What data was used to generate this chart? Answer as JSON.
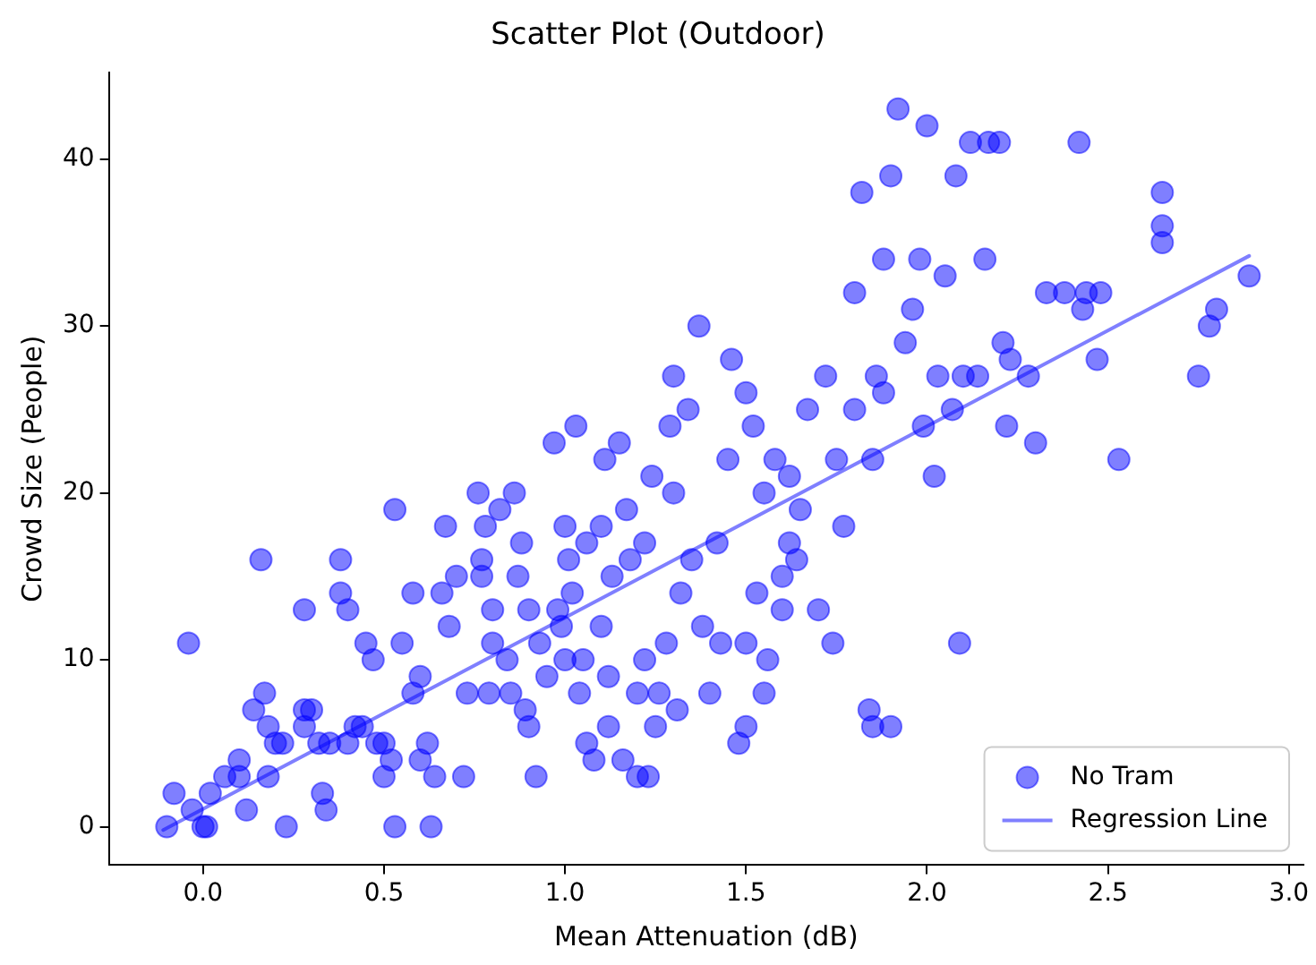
{
  "chart_data": {
    "type": "scatter",
    "title": "Scatter Plot (Outdoor)",
    "xlabel": "Mean Attenuation (dB)",
    "ylabel": "Crowd Size (People)",
    "xlim": [
      -0.26,
      3.04
    ],
    "ylim": [
      -2.3,
      45.2
    ],
    "xticks": [
      {
        "value": 0,
        "label": "0.0"
      },
      {
        "value": 0.5,
        "label": "0.5"
      },
      {
        "value": 1,
        "label": "1.0"
      },
      {
        "value": 1.5,
        "label": "1.5"
      },
      {
        "value": 2,
        "label": "2.0"
      },
      {
        "value": 2.5,
        "label": "2.5"
      },
      {
        "value": 3,
        "label": "3.0"
      }
    ],
    "yticks": [
      0,
      10,
      20,
      30,
      40
    ],
    "grid": false,
    "legend": "bottom right",
    "marker": "circle",
    "series": [
      {
        "name": "No Tram",
        "color": "#0000ff",
        "x": [
          -0.1,
          -0.08,
          -0.04,
          -0.03,
          0.0,
          0.01,
          0.02,
          0.06,
          0.1,
          0.1,
          0.12,
          0.14,
          0.16,
          0.17,
          0.18,
          0.18,
          0.2,
          0.22,
          0.23,
          0.28,
          0.28,
          0.28,
          0.3,
          0.32,
          0.33,
          0.34,
          0.35,
          0.38,
          0.38,
          0.4,
          0.4,
          0.42,
          0.44,
          0.45,
          0.47,
          0.48,
          0.5,
          0.5,
          0.52,
          0.53,
          0.53,
          0.55,
          0.58,
          0.58,
          0.6,
          0.6,
          0.62,
          0.63,
          0.64,
          0.66,
          0.67,
          0.68,
          0.7,
          0.72,
          0.73,
          0.76,
          0.77,
          0.77,
          0.78,
          0.79,
          0.8,
          0.8,
          0.82,
          0.84,
          0.85,
          0.86,
          0.87,
          0.88,
          0.89,
          0.9,
          0.9,
          0.92,
          0.93,
          0.95,
          0.97,
          0.98,
          0.99,
          1.0,
          1.0,
          1.01,
          1.02,
          1.03,
          1.04,
          1.05,
          1.06,
          1.06,
          1.08,
          1.1,
          1.1,
          1.11,
          1.12,
          1.12,
          1.13,
          1.15,
          1.16,
          1.17,
          1.18,
          1.2,
          1.2,
          1.22,
          1.22,
          1.23,
          1.24,
          1.25,
          1.26,
          1.28,
          1.29,
          1.3,
          1.3,
          1.31,
          1.32,
          1.34,
          1.35,
          1.37,
          1.38,
          1.4,
          1.42,
          1.43,
          1.45,
          1.46,
          1.48,
          1.5,
          1.5,
          1.52,
          1.53,
          1.55,
          1.56,
          1.58,
          1.6,
          1.62,
          1.64,
          1.65,
          1.67,
          1.7,
          1.72,
          1.74,
          1.75,
          1.77,
          1.8,
          1.8,
          1.82,
          1.84,
          1.85,
          1.86,
          1.88,
          1.88,
          1.9,
          1.9,
          1.92,
          1.94,
          1.96,
          1.98,
          1.99,
          2.0,
          2.02,
          2.03,
          2.05,
          2.07,
          2.08,
          2.09,
          2.1,
          2.12,
          2.14,
          2.16,
          2.17,
          2.2,
          2.21,
          2.22,
          2.23,
          2.28,
          2.3,
          2.33,
          2.38,
          2.42,
          2.43,
          2.44,
          2.47,
          2.48,
          2.53,
          2.65,
          2.65,
          2.65,
          2.75,
          2.78,
          2.8,
          2.89,
          1.5,
          1.55,
          1.6,
          1.85,
          1.62
        ],
        "values": [
          0,
          2,
          11,
          1,
          0,
          0,
          2,
          3,
          4,
          3,
          1,
          7,
          16,
          8,
          6,
          3,
          5,
          5,
          0,
          13,
          7,
          6,
          7,
          5,
          2,
          1,
          5,
          14,
          16,
          5,
          13,
          6,
          6,
          11,
          10,
          5,
          5,
          3,
          4,
          19,
          0,
          11,
          14,
          8,
          9,
          4,
          5,
          0,
          3,
          14,
          18,
          12,
          15,
          3,
          8,
          20,
          16,
          15,
          18,
          8,
          13,
          11,
          19,
          10,
          8,
          20,
          15,
          17,
          7,
          13,
          6,
          3,
          11,
          9,
          23,
          13,
          12,
          18,
          10,
          16,
          14,
          24,
          8,
          10,
          17,
          5,
          4,
          18,
          12,
          22,
          9,
          6,
          15,
          23,
          4,
          19,
          16,
          8,
          3,
          17,
          10,
          3,
          21,
          6,
          8,
          11,
          24,
          27,
          20,
          7,
          14,
          25,
          16,
          30,
          12,
          8,
          17,
          11,
          22,
          28,
          5,
          26,
          6,
          24,
          14,
          20,
          10,
          22,
          13,
          21,
          16,
          19,
          25,
          13,
          27,
          11,
          22,
          18,
          32,
          25,
          38,
          7,
          22,
          27,
          26,
          34,
          39,
          6,
          43,
          29,
          31,
          34,
          24,
          42,
          21,
          27,
          33,
          25,
          39,
          11,
          27,
          41,
          27,
          34,
          41,
          41,
          29,
          24,
          28,
          27,
          23,
          32,
          32,
          41,
          31,
          32,
          28,
          32,
          22,
          38,
          36,
          35,
          27,
          30,
          31,
          33,
          11,
          8,
          15,
          6,
          17
        ]
      },
      {
        "name": "Regression Line",
        "type": "line",
        "color": "#0000ff",
        "marker": "none",
        "line_style": "solid",
        "x": [
          -0.11,
          2.89
        ],
        "values": [
          -0.2,
          34.2
        ]
      }
    ]
  }
}
